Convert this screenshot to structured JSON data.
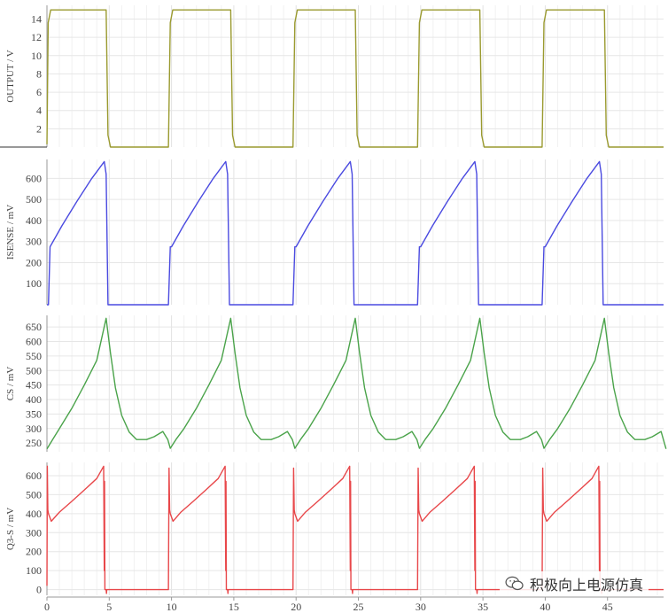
{
  "chart_data": [
    {
      "type": "line",
      "ylabel": "OUTPUT / V",
      "ylim": [
        0,
        15.5
      ],
      "yticks": [
        2,
        4,
        6,
        8,
        10,
        12,
        14
      ],
      "ytick_labels": [
        "2",
        "4",
        "6",
        "8",
        "10",
        "12",
        "14"
      ],
      "series": [
        {
          "color": "#9a9a2f",
          "x": [
            0,
            0.1,
            0.3,
            4.75,
            4.9,
            5.1,
            9.75,
            9.9,
            10.1,
            14.75,
            14.9,
            15.1,
            19.75,
            19.9,
            20.1,
            24.75,
            24.9,
            25.1,
            29.75,
            29.9,
            30.1,
            34.75,
            34.9,
            35.1,
            39.75,
            39.9,
            40.1,
            44.75,
            44.9,
            45.1,
            49.5
          ],
          "y": [
            0.3,
            13.6,
            15,
            15,
            1.3,
            0,
            0,
            13.6,
            15,
            15,
            1.3,
            0,
            0,
            13.6,
            15,
            15,
            1.3,
            0,
            0,
            13.6,
            15,
            15,
            1.3,
            0,
            0,
            13.6,
            15,
            15,
            1.3,
            0,
            0
          ]
        }
      ]
    },
    {
      "type": "line",
      "ylabel": "ISENSE / mV",
      "ylim": [
        0,
        690
      ],
      "yticks": [
        100,
        200,
        300,
        400,
        500,
        600
      ],
      "ytick_labels": [
        "100",
        "200",
        "300",
        "400",
        "500",
        "600"
      ],
      "series": [
        {
          "color": "#4a4ae0",
          "x": [
            0,
            0.12,
            0.25,
            1.2,
            2.4,
            3.6,
            4.6,
            4.75,
            4.9,
            5.0,
            9.75,
            9.9,
            10.0,
            10.95,
            12.15,
            13.35,
            14.35,
            14.5,
            14.65,
            14.75,
            19.75,
            19.9,
            20.0,
            20.95,
            22.15,
            23.35,
            24.35,
            24.5,
            24.65,
            24.75,
            29.75,
            29.9,
            30.0,
            30.95,
            32.15,
            33.35,
            34.35,
            34.5,
            34.65,
            34.75,
            39.75,
            39.9,
            40.0,
            40.95,
            42.15,
            43.35,
            44.35,
            44.5,
            44.65,
            44.75,
            49.5
          ],
          "y": [
            0,
            0,
            275,
            375,
            490,
            600,
            680,
            620,
            0,
            0,
            0,
            275,
            275,
            375,
            490,
            600,
            680,
            620,
            0,
            0,
            0,
            275,
            275,
            375,
            490,
            600,
            680,
            620,
            0,
            0,
            0,
            275,
            275,
            375,
            490,
            600,
            680,
            620,
            0,
            0,
            0,
            275,
            275,
            375,
            490,
            600,
            680,
            620,
            0,
            0,
            0
          ]
        }
      ]
    },
    {
      "type": "line",
      "ylabel": "CS / mV",
      "ylim": [
        220,
        690
      ],
      "yticks": [
        250,
        300,
        350,
        400,
        450,
        500,
        550,
        600,
        650
      ],
      "ytick_labels": [
        "250",
        "300",
        "350",
        "400",
        "450",
        "500",
        "550",
        "600",
        "650"
      ],
      "series": [
        {
          "color": "#4aa34a",
          "x": [
            0,
            0.5,
            1,
            2,
            3,
            4,
            4.75,
            5.1,
            5.5,
            6,
            6.6,
            7.2,
            8,
            8.6,
            9.3,
            9.7,
            9.9,
            10.4,
            11,
            12,
            13,
            14,
            14.75,
            15.1,
            15.5,
            16,
            16.6,
            17.2,
            18,
            18.6,
            19.3,
            19.7,
            19.9,
            20.4,
            21,
            22,
            23,
            24,
            24.75,
            25.1,
            25.5,
            26,
            26.6,
            27.2,
            28,
            28.6,
            29.3,
            29.7,
            29.9,
            30.4,
            31,
            32,
            33,
            34,
            34.75,
            35.1,
            35.5,
            36,
            36.6,
            37.2,
            38,
            38.6,
            39.3,
            39.7,
            39.9,
            40.4,
            41,
            42,
            43,
            44,
            44.75,
            45.1,
            45.5,
            46,
            46.6,
            47.2,
            48,
            48.6,
            49.3,
            49.7
          ],
          "y": [
            230,
            265,
            300,
            370,
            450,
            535,
            680,
            560,
            440,
            345,
            288,
            262,
            262,
            272,
            290,
            262,
            232,
            265,
            300,
            370,
            450,
            535,
            680,
            560,
            440,
            345,
            288,
            262,
            262,
            272,
            290,
            262,
            232,
            265,
            300,
            370,
            450,
            535,
            680,
            560,
            440,
            345,
            288,
            262,
            262,
            272,
            290,
            262,
            232,
            265,
            300,
            370,
            450,
            535,
            680,
            560,
            440,
            345,
            288,
            262,
            262,
            272,
            290,
            262,
            232,
            265,
            300,
            370,
            450,
            535,
            680,
            560,
            440,
            345,
            288,
            262,
            262,
            272,
            290,
            230
          ]
        }
      ]
    },
    {
      "type": "line",
      "ylabel": "Q3-S / mV",
      "ylim": [
        -30,
        670
      ],
      "yticks": [
        0,
        100,
        200,
        300,
        400,
        500,
        600
      ],
      "ytick_labels": [
        "0",
        "100",
        "200",
        "300",
        "400",
        "500",
        "600"
      ],
      "series": [
        {
          "color": "#e8474a",
          "x": [
            0,
            0.03,
            0.07,
            0.12,
            0.35,
            1.0,
            2.0,
            3.0,
            4.0,
            4.55,
            4.6,
            4.62,
            4.65,
            4.75,
            4.78,
            4.8,
            5.0,
            9.75,
            9.8,
            9.85,
            9.9,
            10.12,
            10.75,
            11.75,
            12.75,
            13.75,
            14.3,
            14.35,
            14.37,
            14.4,
            14.5,
            14.53,
            14.55,
            14.75,
            19.75,
            19.8,
            19.85,
            19.9,
            20.12,
            20.75,
            21.75,
            22.75,
            23.75,
            24.3,
            24.35,
            24.37,
            24.4,
            24.5,
            24.53,
            24.55,
            24.75,
            29.75,
            29.8,
            29.85,
            29.9,
            30.12,
            30.75,
            31.75,
            32.75,
            33.75,
            34.3,
            34.35,
            34.37,
            34.4,
            34.5,
            34.53,
            34.55,
            34.75,
            39.75,
            39.8,
            39.85,
            39.9,
            40.12,
            40.75,
            41.75,
            42.75,
            43.75,
            44.3,
            44.35,
            44.37,
            44.4,
            44.5,
            44.53,
            44.55,
            44.75,
            49.5
          ],
          "y": [
            20,
            650,
            420,
            400,
            360,
            408,
            465,
            525,
            585,
            650,
            100,
            570,
            0,
            0,
            -20,
            0,
            0,
            0,
            640,
            420,
            400,
            360,
            408,
            465,
            525,
            585,
            650,
            100,
            570,
            0,
            0,
            -20,
            0,
            0,
            0,
            640,
            420,
            400,
            360,
            408,
            465,
            525,
            585,
            650,
            100,
            570,
            0,
            0,
            -20,
            0,
            0,
            0,
            640,
            420,
            400,
            360,
            408,
            465,
            525,
            585,
            650,
            100,
            570,
            0,
            0,
            -20,
            0,
            0,
            0,
            640,
            420,
            400,
            360,
            408,
            465,
            525,
            585,
            650,
            100,
            570,
            0,
            0,
            -20,
            0,
            0,
            0
          ]
        }
      ]
    }
  ],
  "x_axis": {
    "xlim": [
      0,
      49.5
    ],
    "ticks": [
      0,
      5,
      10,
      15,
      20,
      25,
      30,
      35,
      40,
      45
    ],
    "tick_labels": [
      "0",
      "5",
      "10",
      "15",
      "20",
      "25",
      "30",
      "35",
      "40",
      "45"
    ],
    "grid": true
  },
  "watermark": {
    "text": "积极向上电源仿真",
    "icon": "wechat-icon"
  }
}
